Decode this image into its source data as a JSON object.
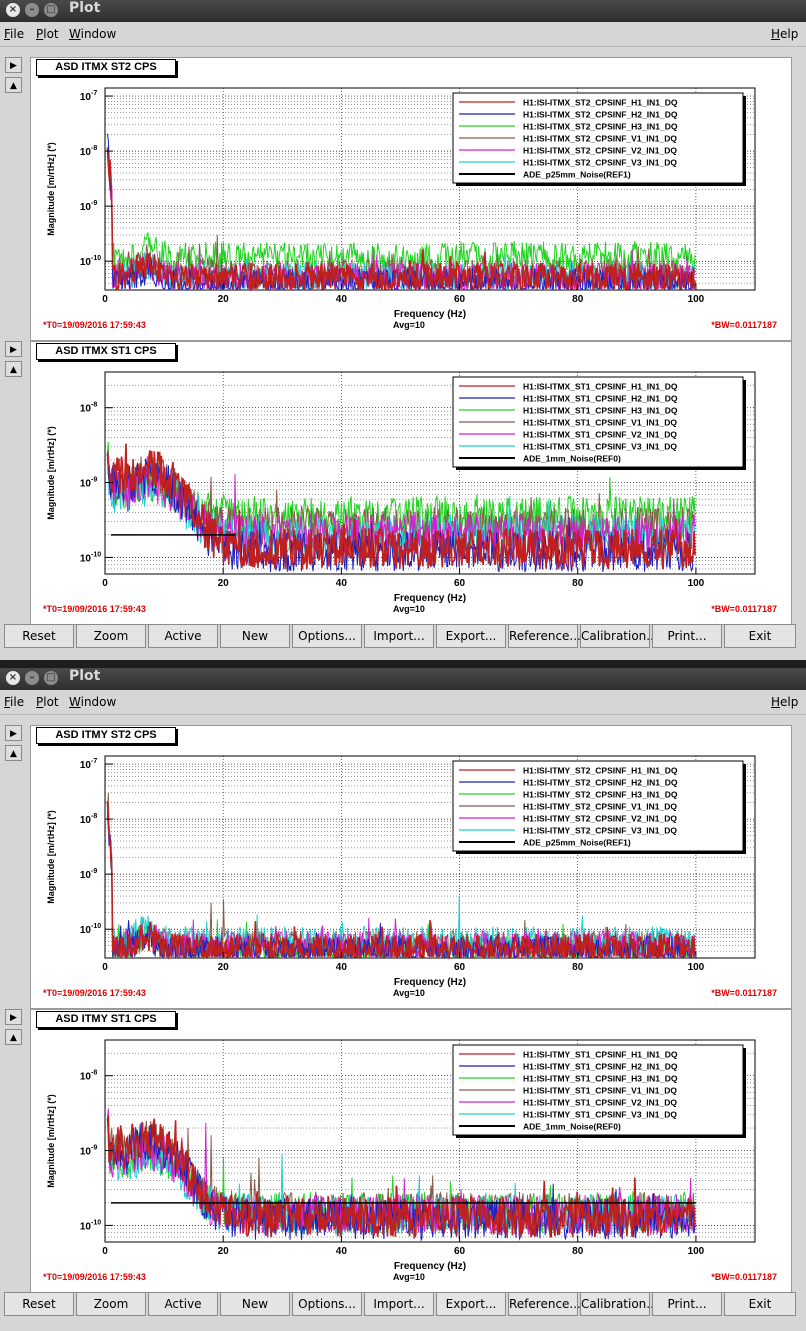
{
  "windows": [
    {
      "title": "Plot",
      "menus": [
        "File",
        "Plot",
        "Window"
      ],
      "help": "Help",
      "plots": [
        {
          "title": "ASD ITMX ST2 CPS",
          "status": {
            "t0": "*T0=19/09/2016 17:59:43",
            "avg": "Avg=10",
            "bw": "*BW=0.0117187"
          },
          "chart_data": {
            "type": "line",
            "xlabel": "Frequency (Hz)",
            "ylabel": "Magnitude [m/rtHz] (*)",
            "xlim": [
              0,
              110
            ],
            "ylim": [
              3e-11,
              1.4e-07
            ],
            "yscale": "log",
            "xticks": [
              0,
              20,
              40,
              60,
              80,
              100
            ],
            "yticks": [
              {
                "v": 1e-10,
                "label": "10"
              },
              {
                "v": 1e-09,
                "label": "10"
              },
              {
                "v": 1e-08,
                "label": "10"
              },
              {
                "v": 1e-07,
                "label": "10"
              }
            ],
            "ytick_exponents": [
              "-10",
              "-9",
              "-8",
              "-7"
            ],
            "legend_position": "top-right",
            "grid": true,
            "series": [
              {
                "name": "H1:ISI-ITMX_ST2_CPSINF_H1_IN1_DQ",
                "color": "#c02020",
                "floor": 5e-11,
                "peaks": [
                  [
                    7,
                    1e-10
                  ]
                ]
              },
              {
                "name": "H1:ISI-ITMX_ST2_CPSINF_H2_IN1_DQ",
                "color": "#1f1fbf",
                "floor": 4e-11,
                "peaks": [
                  [
                    7,
                    1.2e-10
                  ]
                ]
              },
              {
                "name": "H1:ISI-ITMX_ST2_CPSINF_H3_IN1_DQ",
                "color": "#22d322",
                "floor": 1.2e-10,
                "peaks": [
                  [
                    7,
                    2.5e-10
                  ],
                  [
                    20,
                    2.2e-10
                  ]
                ]
              },
              {
                "name": "H1:ISI-ITMX_ST2_CPSINF_V1_IN1_DQ",
                "color": "#8a5a4a",
                "floor": 6e-11,
                "peaks": [
                  [
                    7,
                    2e-10
                  ],
                  [
                    19,
                    3e-10
                  ]
                ]
              },
              {
                "name": "H1:ISI-ITMX_ST2_CPSINF_V2_IN1_DQ",
                "color": "#d020d0",
                "floor": 5e-11,
                "peaks": [
                  [
                    16,
                    2e-10
                  ]
                ]
              },
              {
                "name": "H1:ISI-ITMX_ST2_CPSINF_V3_IN1_DQ",
                "color": "#22d0d0",
                "floor": 5e-11,
                "peaks": []
              },
              {
                "name": "ADE_p25mm_Noise(REF1)",
                "color": "#000000",
                "floor": null,
                "peaks": []
              }
            ]
          }
        },
        {
          "title": "ASD ITMX ST1 CPS",
          "status": {
            "t0": "*T0=19/09/2016 17:59:43",
            "avg": "Avg=10",
            "bw": "*BW=0.0117187"
          },
          "chart_data": {
            "type": "line",
            "xlabel": "Frequency (Hz)",
            "ylabel": "Magnitude [m/rtHz] (*)",
            "xlim": [
              0,
              110
            ],
            "ylim": [
              6e-11,
              3e-08
            ],
            "yscale": "log",
            "xticks": [
              0,
              20,
              40,
              60,
              80,
              100
            ],
            "yticks": [
              {
                "v": 1e-10,
                "label": "10"
              },
              {
                "v": 1e-09,
                "label": "10"
              },
              {
                "v": 1e-08,
                "label": "10"
              }
            ],
            "ytick_exponents": [
              "-10",
              "-9",
              "-8"
            ],
            "legend_position": "top-right",
            "grid": true,
            "ref_line": {
              "x": [
                1,
                22
              ],
              "y": 2e-10
            },
            "series": [
              {
                "name": "H1:ISI-ITMX_ST1_CPSINF_H1_IN1_DQ",
                "color": "#c02020",
                "floor": 1.3e-10,
                "hump": 1.5e-09,
                "peaks": []
              },
              {
                "name": "H1:ISI-ITMX_ST1_CPSINF_H2_IN1_DQ",
                "color": "#1f1fbf",
                "floor": 1.2e-10,
                "hump": 1.2e-09,
                "peaks": []
              },
              {
                "name": "H1:ISI-ITMX_ST1_CPSINF_H3_IN1_DQ",
                "color": "#22d322",
                "floor": 3.5e-10,
                "hump": 1e-09,
                "peaks": [
                  [
                    20,
                    7e-10
                  ]
                ]
              },
              {
                "name": "H1:ISI-ITMX_ST1_CPSINF_V1_IN1_DQ",
                "color": "#8a5a4a",
                "floor": 2.5e-10,
                "hump": 1.3e-09,
                "peaks": [
                  [
                    18,
                    1.2e-09
                  ],
                  [
                    29,
                    8e-10
                  ]
                ]
              },
              {
                "name": "H1:ISI-ITMX_ST1_CPSINF_V2_IN1_DQ",
                "color": "#d020d0",
                "floor": 2e-10,
                "hump": 1e-09,
                "peaks": [
                  [
                    22,
                    1.3e-09
                  ]
                ]
              },
              {
                "name": "H1:ISI-ITMX_ST1_CPSINF_V3_IN1_DQ",
                "color": "#22d0d0",
                "floor": 2e-10,
                "hump": 9e-10,
                "peaks": []
              },
              {
                "name": "ADE_1mm_Noise(REF0)",
                "color": "#000000",
                "floor": null,
                "hump": null,
                "peaks": []
              }
            ]
          }
        }
      ],
      "buttons": [
        "Reset",
        "Zoom",
        "Active",
        "New",
        "Options...",
        "Import...",
        "Export...",
        "Reference...",
        "Calibration...",
        "Print...",
        "Exit"
      ]
    },
    {
      "title": "Plot",
      "menus": [
        "File",
        "Plot",
        "Window"
      ],
      "help": "Help",
      "plots": [
        {
          "title": "ASD ITMY ST2 CPS",
          "status": {
            "t0": "*T0=19/09/2016 17:59:43",
            "avg": "Avg=10",
            "bw": "*BW=0.0117187"
          },
          "chart_data": {
            "type": "line",
            "xlabel": "Frequency (Hz)",
            "ylabel": "Magnitude [m/rtHz] (*)",
            "xlim": [
              0,
              110
            ],
            "ylim": [
              3e-11,
              1.4e-07
            ],
            "yscale": "log",
            "xticks": [
              0,
              20,
              40,
              60,
              80,
              100
            ],
            "yticks": [
              {
                "v": 1e-10,
                "label": "10"
              },
              {
                "v": 1e-09,
                "label": "10"
              },
              {
                "v": 1e-08,
                "label": "10"
              },
              {
                "v": 1e-07,
                "label": "10"
              }
            ],
            "ytick_exponents": [
              "-10",
              "-9",
              "-8",
              "-7"
            ],
            "legend_position": "top-right",
            "grid": true,
            "series": [
              {
                "name": "H1:ISI-ITMY_ST2_CPSINF_H1_IN1_DQ",
                "color": "#c02020",
                "floor": 4.5e-11,
                "peaks": [
                  [
                    8,
                    9e-11
                  ]
                ]
              },
              {
                "name": "H1:ISI-ITMY_ST2_CPSINF_H2_IN1_DQ",
                "color": "#1f1fbf",
                "floor": 4e-11,
                "peaks": [
                  [
                    8,
                    8e-11
                  ]
                ]
              },
              {
                "name": "H1:ISI-ITMY_ST2_CPSINF_H3_IN1_DQ",
                "color": "#22d322",
                "floor": 4e-11,
                "peaks": [
                  [
                    19,
                    1.5e-10
                  ]
                ]
              },
              {
                "name": "H1:ISI-ITMY_ST2_CPSINF_V1_IN1_DQ",
                "color": "#8a5a4a",
                "floor": 5e-11,
                "peaks": [
                  [
                    18,
                    3e-10
                  ],
                  [
                    20,
                    3.5e-10
                  ]
                ]
              },
              {
                "name": "H1:ISI-ITMY_ST2_CPSINF_V2_IN1_DQ",
                "color": "#d020d0",
                "floor": 5e-11,
                "peaks": [
                  [
                    15,
                    1.5e-10
                  ]
                ]
              },
              {
                "name": "H1:ISI-ITMY_ST2_CPSINF_V3_IN1_DQ",
                "color": "#22d0d0",
                "floor": 6e-11,
                "peaks": [
                  [
                    60,
                    4e-10
                  ]
                ]
              },
              {
                "name": "ADE_p25mm_Noise(REF1)",
                "color": "#000000",
                "floor": null,
                "peaks": []
              }
            ]
          }
        },
        {
          "title": "ASD ITMY ST1 CPS",
          "status": {
            "t0": "*T0=19/09/2016 17:59:43",
            "avg": "Avg=10",
            "bw": "*BW=0.0117187"
          },
          "chart_data": {
            "type": "line",
            "xlabel": "Frequency (Hz)",
            "ylabel": "Magnitude [m/rtHz] (*)",
            "xlim": [
              0,
              110
            ],
            "ylim": [
              6e-11,
              3e-08
            ],
            "yscale": "log",
            "xticks": [
              0,
              20,
              40,
              60,
              80,
              100
            ],
            "yticks": [
              {
                "v": 1e-10,
                "label": "10"
              },
              {
                "v": 1e-09,
                "label": "10"
              },
              {
                "v": 1e-08,
                "label": "10"
              }
            ],
            "ytick_exponents": [
              "-10",
              "-9",
              "-8"
            ],
            "legend_position": "top-right",
            "grid": true,
            "ref_line": {
              "x": [
                1,
                100
              ],
              "y": 2e-10
            },
            "series": [
              {
                "name": "H1:ISI-ITMY_ST1_CPSINF_H1_IN1_DQ",
                "color": "#c02020",
                "floor": 1.3e-10,
                "hump": 1.5e-09,
                "peaks": []
              },
              {
                "name": "H1:ISI-ITMY_ST1_CPSINF_H2_IN1_DQ",
                "color": "#1f1fbf",
                "floor": 1.2e-10,
                "hump": 1.3e-09,
                "peaks": []
              },
              {
                "name": "H1:ISI-ITMY_ST1_CPSINF_H3_IN1_DQ",
                "color": "#22d322",
                "floor": 1.5e-10,
                "hump": 1e-09,
                "peaks": [
                  [
                    20,
                    8e-10
                  ]
                ]
              },
              {
                "name": "H1:ISI-ITMY_ST1_CPSINF_V1_IN1_DQ",
                "color": "#8a5a4a",
                "floor": 1.5e-10,
                "hump": 1.4e-09,
                "peaks": [
                  [
                    14,
                    2e-09
                  ],
                  [
                    18,
                    1.6e-09
                  ],
                  [
                    26,
                    8e-10
                  ]
                ]
              },
              {
                "name": "H1:ISI-ITMY_ST1_CPSINF_V2_IN1_DQ",
                "color": "#d020d0",
                "floor": 1.4e-10,
                "hump": 1e-09,
                "peaks": [
                  [
                    13,
                    1.5e-09
                  ],
                  [
                    17,
                    1.3e-09
                  ]
                ]
              },
              {
                "name": "H1:ISI-ITMY_ST1_CPSINF_V3_IN1_DQ",
                "color": "#22d0d0",
                "floor": 1.4e-10,
                "hump": 9e-10,
                "peaks": [
                  [
                    30,
                    9e-10
                  ]
                ]
              },
              {
                "name": "ADE_1mm_Noise(REF0)",
                "color": "#000000",
                "floor": null,
                "hump": null,
                "peaks": []
              }
            ]
          }
        }
      ],
      "buttons": [
        "Reset",
        "Zoom",
        "Active",
        "New",
        "Options...",
        "Import...",
        "Export...",
        "Reference...",
        "Calibration...",
        "Print...",
        "Exit"
      ]
    }
  ]
}
